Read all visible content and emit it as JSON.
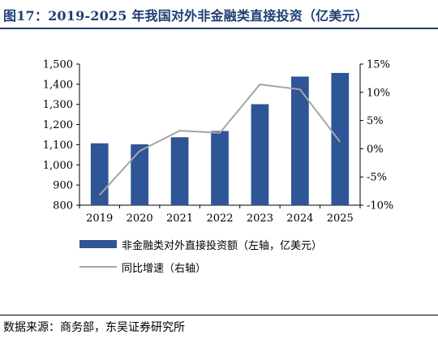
{
  "title": "图17：2019-2025 年我国对外非金融类直接投资（亿美元）",
  "source": "数据来源：商务部，东吴证券研究所",
  "colors": {
    "bar": "#2e5596",
    "line": "#a6a6a6",
    "title": "#1f3e73"
  },
  "chart_data": {
    "type": "bar",
    "categories": [
      "2019",
      "2020",
      "2021",
      "2022",
      "2023",
      "2024",
      "2025"
    ],
    "series": [
      {
        "name": "非金融类对外直接投资额（左轴，亿美元）",
        "type": "bar",
        "axis": "left",
        "values": [
          1107,
          1102,
          1137,
          1168,
          1301,
          1438,
          1456
        ]
      },
      {
        "name": "同比增速（右轴）",
        "type": "line",
        "axis": "right",
        "unit": "%",
        "values": [
          -8.2,
          -0.4,
          3.2,
          2.8,
          11.4,
          10.5,
          1.2
        ]
      }
    ],
    "y_left": {
      "min": 800,
      "max": 1500,
      "ticks": [
        "800",
        "900",
        "1,000",
        "1,100",
        "1,200",
        "1,300",
        "1,400",
        "1,500"
      ]
    },
    "y_right": {
      "min": -10,
      "max": 15,
      "ticks": [
        "-10%",
        "-5%",
        "0%",
        "5%",
        "10%",
        "15%"
      ]
    },
    "legend_position": "bottom-left",
    "grid": false
  },
  "legend": [
    {
      "label": "非金融类对外直接投资额（左轴，亿美元）",
      "kind": "bar"
    },
    {
      "label": "同比增速（右轴）",
      "kind": "line"
    }
  ]
}
